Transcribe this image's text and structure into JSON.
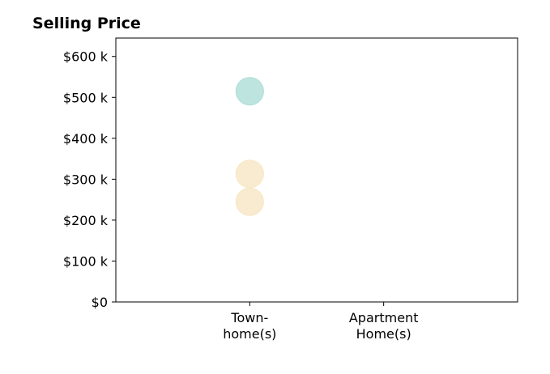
{
  "chart_data": {
    "type": "scatter",
    "title": "Selling Price",
    "xlabel": "",
    "ylabel": "",
    "categories": [
      [
        "Town-",
        "home(s)"
      ],
      [
        "Apartment",
        "Home(s)"
      ]
    ],
    "y_tick_labels": [
      "$0",
      "$100 k",
      "$200 k",
      "$300 k",
      "$400 k",
      "$500 k",
      "$600 k"
    ],
    "y_ticks": [
      0,
      100000,
      200000,
      300000,
      400000,
      500000,
      600000
    ],
    "ylim": [
      0,
      645000
    ],
    "xlim": [
      -1,
      2
    ],
    "grid": false,
    "points": [
      {
        "category": "Town-home(s)",
        "value": 515000,
        "color": "#b3dfd9"
      },
      {
        "category": "Apartment Home(s)",
        "value": 313000,
        "color": "#f8e8c8"
      },
      {
        "category": "Apartment Home(s)",
        "value": 245000,
        "color": "#f8e8c8"
      }
    ],
    "colors": {
      "townhome": "#b3dfd9",
      "apartment": "#f8e8c8"
    }
  }
}
